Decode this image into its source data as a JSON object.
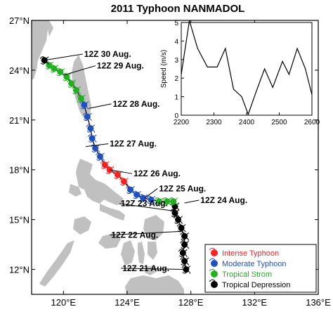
{
  "chart_data": [
    {
      "type": "map",
      "title": "2011 Typhoon NANMADOL",
      "x_ticks": [
        "120°E",
        "124°E",
        "128°E",
        "132°E",
        "136°E"
      ],
      "y_ticks": [
        "12°N",
        "15°N",
        "18°N",
        "21°N",
        "24°N",
        "27°N"
      ],
      "xlim": [
        118.0,
        136.0
      ],
      "ylim": [
        10.5,
        27.0
      ],
      "colors": {
        "intense": "#ff2020",
        "moderate": "#2050c0",
        "tropical_storm": "#20b020",
        "depression": "#000000",
        "land": "#c0c0c0"
      },
      "legend": [
        {
          "key": "intense",
          "label": "Intense Typhoon",
          "text_color": "#ff2020"
        },
        {
          "key": "moderate",
          "label": "Moderate Typhoon",
          "text_color": "#2050c0"
        },
        {
          "key": "tropical_storm",
          "label": "Tropical Strom",
          "text_color": "#20b020"
        },
        {
          "key": "depression",
          "label": "Tropical Depression",
          "text_color": "#000000"
        }
      ],
      "track": [
        {
          "lon": 127.7,
          "lat": 12.0,
          "cat": "depression"
        },
        {
          "lon": 127.6,
          "lat": 12.5,
          "cat": "depression"
        },
        {
          "lon": 127.5,
          "lat": 13.0,
          "cat": "depression"
        },
        {
          "lon": 127.6,
          "lat": 13.5,
          "cat": "depression"
        },
        {
          "lon": 127.6,
          "lat": 14.0,
          "cat": "depression"
        },
        {
          "lon": 127.4,
          "lat": 14.5,
          "cat": "depression"
        },
        {
          "lon": 127.2,
          "lat": 15.0,
          "cat": "depression"
        },
        {
          "lon": 127.0,
          "lat": 15.4,
          "cat": "depression"
        },
        {
          "lon": 127.0,
          "lat": 15.8,
          "cat": "depression"
        },
        {
          "lon": 126.9,
          "lat": 16.1,
          "cat": "tropical_storm"
        },
        {
          "lon": 126.5,
          "lat": 16.1,
          "cat": "tropical_storm"
        },
        {
          "lon": 126.0,
          "lat": 16.1,
          "cat": "tropical_storm"
        },
        {
          "lon": 125.5,
          "lat": 16.2,
          "cat": "moderate"
        },
        {
          "lon": 125.0,
          "lat": 16.3,
          "cat": "moderate"
        },
        {
          "lon": 124.6,
          "lat": 16.5,
          "cat": "moderate"
        },
        {
          "lon": 124.2,
          "lat": 16.8,
          "cat": "moderate"
        },
        {
          "lon": 123.8,
          "lat": 17.3,
          "cat": "intense"
        },
        {
          "lon": 123.4,
          "lat": 17.7,
          "cat": "intense"
        },
        {
          "lon": 122.9,
          "lat": 18.0,
          "cat": "intense"
        },
        {
          "lon": 122.6,
          "lat": 18.3,
          "cat": "intense"
        },
        {
          "lon": 122.3,
          "lat": 18.8,
          "cat": "moderate"
        },
        {
          "lon": 122.0,
          "lat": 19.3,
          "cat": "moderate"
        },
        {
          "lon": 121.8,
          "lat": 19.9,
          "cat": "moderate"
        },
        {
          "lon": 121.7,
          "lat": 20.5,
          "cat": "moderate"
        },
        {
          "lon": 121.5,
          "lat": 21.2,
          "cat": "moderate"
        },
        {
          "lon": 121.3,
          "lat": 21.9,
          "cat": "moderate"
        },
        {
          "lon": 121.1,
          "lat": 22.3,
          "cat": "tropical_storm"
        },
        {
          "lon": 120.8,
          "lat": 22.8,
          "cat": "tropical_storm"
        },
        {
          "lon": 120.5,
          "lat": 23.2,
          "cat": "tropical_storm"
        },
        {
          "lon": 120.2,
          "lat": 23.6,
          "cat": "tropical_storm"
        },
        {
          "lon": 119.8,
          "lat": 23.9,
          "cat": "tropical_storm"
        },
        {
          "lon": 119.4,
          "lat": 24.1,
          "cat": "tropical_storm"
        },
        {
          "lon": 119.1,
          "lat": 24.3,
          "cat": "tropical_storm"
        },
        {
          "lon": 118.8,
          "lat": 24.6,
          "cat": "depression"
        }
      ],
      "annotations": [
        {
          "label": "12Z 30 Aug.",
          "lon": 118.8,
          "lat": 24.6,
          "text_lon": 121.3,
          "text_lat": 24.8
        },
        {
          "label": "12Z 29 Aug.",
          "lon": 120.0,
          "lat": 23.7,
          "text_lon": 122.1,
          "text_lat": 24.1
        },
        {
          "label": "12Z 28 Aug.",
          "lon": 121.6,
          "lat": 21.7,
          "text_lon": 123.1,
          "text_lat": 21.8
        },
        {
          "label": "12Z 27 Aug.",
          "lon": 121.4,
          "lat": 19.4,
          "text_lon": 122.9,
          "text_lat": 19.4
        },
        {
          "label": "12Z 26 Aug.",
          "lon": 122.9,
          "lat": 18.0,
          "text_lon": 124.4,
          "text_lat": 17.6
        },
        {
          "label": "12Z 25 Aug.",
          "lon": 125.1,
          "lat": 16.3,
          "text_lon": 126.0,
          "text_lat": 16.7
        },
        {
          "label": "12Z 24 Aug.",
          "lon": 127.6,
          "lat": 16.0,
          "text_lon": 128.6,
          "text_lat": 16.0
        },
        {
          "label": "12Z 23 Aug.",
          "lon": 127.1,
          "lat": 15.5,
          "text_lon": 123.6,
          "text_lat": 15.8
        },
        {
          "label": "12Z 22 Aug.",
          "lon": 127.5,
          "lat": 14.3,
          "text_lon": 123.0,
          "text_lat": 13.9
        },
        {
          "label": "12Z 21 Aug.",
          "lon": 127.7,
          "lat": 12.0,
          "text_lon": 123.7,
          "text_lat": 11.9
        }
      ]
    },
    {
      "type": "line",
      "xlabel": "",
      "ylabel": "Speed (m/s)",
      "xlim": [
        2200,
        2600
      ],
      "ylim": [
        0,
        5
      ],
      "x_ticks": [
        2200,
        2300,
        2400,
        2500,
        2600
      ],
      "y_ticks": [
        0,
        1,
        2,
        3,
        4,
        5
      ],
      "x": [
        2200,
        2225,
        2250,
        2280,
        2310,
        2335,
        2360,
        2385,
        2405,
        2430,
        2455,
        2480,
        2510,
        2530,
        2555,
        2580,
        2600
      ],
      "y": [
        2.2,
        5.1,
        3.6,
        2.6,
        2.6,
        3.6,
        1.4,
        1.0,
        0.05,
        1.3,
        2.5,
        1.5,
        2.9,
        2.2,
        3.6,
        2.5,
        1.1
      ]
    }
  ]
}
